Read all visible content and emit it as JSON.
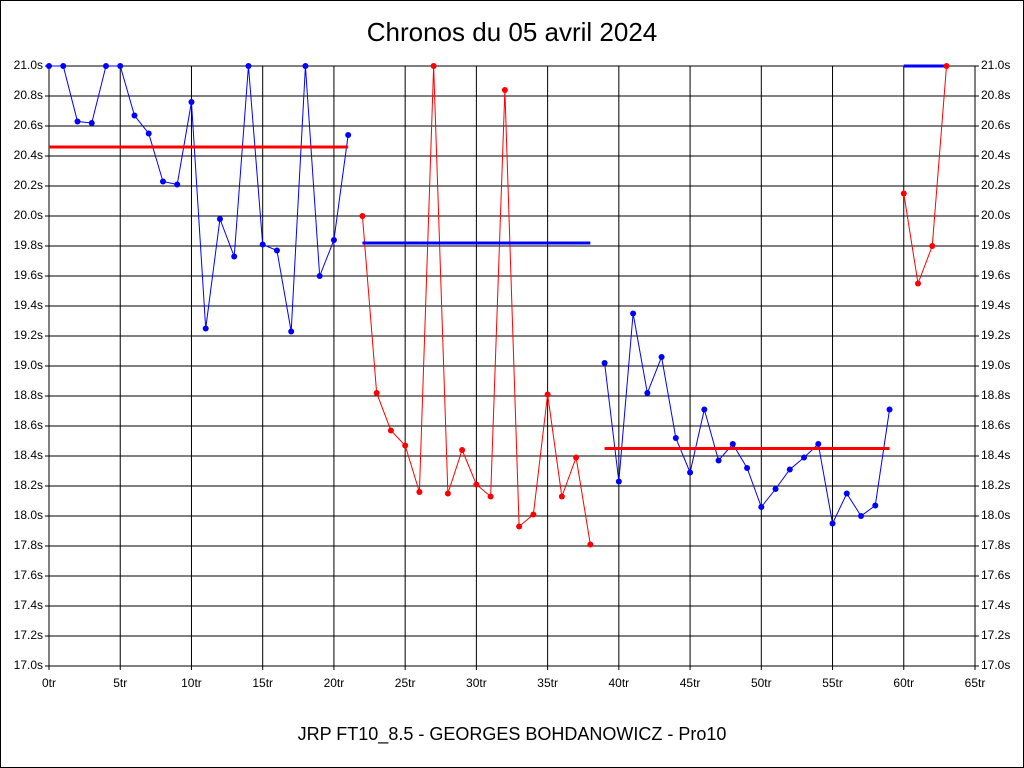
{
  "chart_data": {
    "type": "line",
    "title": "Chronos du 05 avril 2024",
    "footer": "JRP FT10_8.5 - GEORGES BOHDANOWICZ - Pro10",
    "xlim": [
      0,
      65
    ],
    "ylim": [
      17.0,
      21.0
    ],
    "grid": true,
    "xticks": [
      {
        "value": 0,
        "label": "0tr"
      },
      {
        "value": 5,
        "label": "5tr"
      },
      {
        "value": 10,
        "label": "10tr"
      },
      {
        "value": 15,
        "label": "15tr"
      },
      {
        "value": 20,
        "label": "20tr"
      },
      {
        "value": 25,
        "label": "25tr"
      },
      {
        "value": 30,
        "label": "30tr"
      },
      {
        "value": 35,
        "label": "35tr"
      },
      {
        "value": 40,
        "label": "40tr"
      },
      {
        "value": 45,
        "label": "45tr"
      },
      {
        "value": 50,
        "label": "50tr"
      },
      {
        "value": 55,
        "label": "55tr"
      },
      {
        "value": 60,
        "label": "60tr"
      },
      {
        "value": 65,
        "label": "65tr"
      }
    ],
    "yticks": [
      {
        "value": 17.0,
        "label": "17.0s"
      },
      {
        "value": 17.2,
        "label": "17.2s"
      },
      {
        "value": 17.4,
        "label": "17.4s"
      },
      {
        "value": 17.6,
        "label": "17.6s"
      },
      {
        "value": 17.8,
        "label": "17.8s"
      },
      {
        "value": 18.0,
        "label": "18.0s"
      },
      {
        "value": 18.2,
        "label": "18.2s"
      },
      {
        "value": 18.4,
        "label": "18.4s"
      },
      {
        "value": 18.6,
        "label": "18.6s"
      },
      {
        "value": 18.8,
        "label": "18.8s"
      },
      {
        "value": 19.0,
        "label": "19.0s"
      },
      {
        "value": 19.2,
        "label": "19.2s"
      },
      {
        "value": 19.4,
        "label": "19.4s"
      },
      {
        "value": 19.6,
        "label": "19.6s"
      },
      {
        "value": 19.8,
        "label": "19.8s"
      },
      {
        "value": 20.0,
        "label": "20.0s"
      },
      {
        "value": 20.2,
        "label": "20.2s"
      },
      {
        "value": 20.4,
        "label": "20.4s"
      },
      {
        "value": 20.6,
        "label": "20.6s"
      },
      {
        "value": 20.8,
        "label": "20.8s"
      },
      {
        "value": 21.0,
        "label": "21.0s"
      }
    ],
    "series": [
      {
        "color": "#0000ff",
        "mean": 20.46,
        "mean_color": "#ff0000",
        "x": [
          0,
          1,
          2,
          3,
          4,
          5,
          6,
          7,
          8,
          9,
          10,
          11,
          12,
          13,
          14,
          15,
          16,
          17,
          18,
          19,
          20,
          21
        ],
        "values": [
          21.0,
          21.0,
          20.63,
          20.62,
          21.0,
          21.0,
          20.67,
          20.55,
          20.23,
          20.21,
          20.76,
          19.25,
          19.98,
          19.73,
          21.0,
          19.81,
          19.77,
          19.23,
          21.0,
          19.6,
          19.84,
          20.54
        ]
      },
      {
        "color": "#ff0000",
        "mean": 19.82,
        "mean_color": "#0000ff",
        "x": [
          22,
          23,
          24,
          25,
          26,
          27,
          28,
          29,
          30,
          31,
          32,
          33,
          34,
          35,
          36,
          37,
          38
        ],
        "values": [
          20.0,
          18.82,
          18.57,
          18.47,
          18.16,
          21.0,
          18.15,
          18.44,
          18.21,
          18.13,
          20.84,
          17.93,
          18.01,
          18.81,
          18.13,
          18.39,
          17.81
        ]
      },
      {
        "color": "#0000ff",
        "mean": 18.45,
        "mean_color": "#ff0000",
        "x": [
          39,
          40,
          41,
          42,
          43,
          44,
          45,
          46,
          47,
          48,
          49,
          50,
          51,
          52,
          53,
          54,
          55,
          56,
          57,
          58,
          59
        ],
        "values": [
          19.02,
          18.23,
          19.35,
          18.82,
          19.06,
          18.52,
          18.29,
          18.71,
          18.37,
          18.48,
          18.32,
          18.06,
          18.18,
          18.31,
          18.39,
          18.48,
          17.95,
          18.15,
          18.0,
          18.07,
          18.71
        ]
      },
      {
        "color": "#ff0000",
        "mean": 21.0,
        "mean_color": "#0000ff",
        "x": [
          60,
          61,
          62,
          63
        ],
        "values": [
          20.15,
          19.55,
          19.8,
          21.0
        ]
      }
    ]
  }
}
